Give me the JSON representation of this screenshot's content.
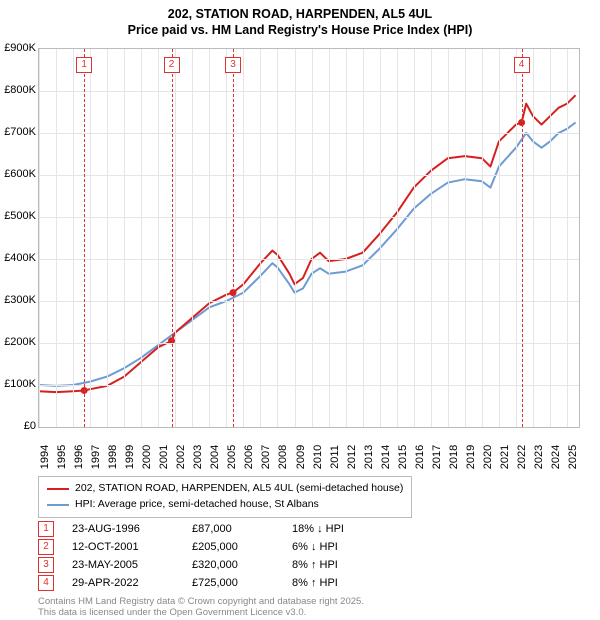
{
  "title": {
    "line1": "202, STATION ROAD, HARPENDEN, AL5 4UL",
    "line2": "Price paid vs. HM Land Registry's House Price Index (HPI)"
  },
  "chart": {
    "type": "line",
    "background_color": "#ffffff",
    "grid_color": "#e5e5e5",
    "marker_dash_color": "#e03030",
    "x": {
      "min": 1994,
      "max": 2025.7,
      "ticks": [
        1994,
        1995,
        1996,
        1997,
        1998,
        1999,
        2000,
        2001,
        2002,
        2003,
        2004,
        2005,
        2006,
        2007,
        2008,
        2009,
        2010,
        2011,
        2012,
        2013,
        2014,
        2015,
        2016,
        2017,
        2018,
        2019,
        2020,
        2021,
        2022,
        2023,
        2024,
        2025
      ]
    },
    "y": {
      "min": 0,
      "max": 900000,
      "ticks": [
        0,
        100000,
        200000,
        300000,
        400000,
        500000,
        600000,
        700000,
        800000,
        900000
      ],
      "labels": [
        "£0",
        "£100K",
        "£200K",
        "£300K",
        "£400K",
        "£500K",
        "£600K",
        "£700K",
        "£800K",
        "£900K"
      ]
    },
    "series": [
      {
        "name": "202, STATION ROAD, HARPENDEN, AL5 4UL (semi-detached house)",
        "color": "#d62020",
        "width": 2,
        "points": [
          [
            1994,
            85000
          ],
          [
            1995,
            83000
          ],
          [
            1996,
            85000
          ],
          [
            1996.65,
            87000
          ],
          [
            1997,
            90000
          ],
          [
            1998,
            98000
          ],
          [
            1999,
            120000
          ],
          [
            2000,
            155000
          ],
          [
            2001,
            190000
          ],
          [
            2001.78,
            205000
          ],
          [
            2002,
            225000
          ],
          [
            2003,
            260000
          ],
          [
            2004,
            295000
          ],
          [
            2005,
            315000
          ],
          [
            2005.39,
            320000
          ],
          [
            2006,
            340000
          ],
          [
            2007,
            390000
          ],
          [
            2007.7,
            420000
          ],
          [
            2008,
            410000
          ],
          [
            2008.7,
            365000
          ],
          [
            2009,
            340000
          ],
          [
            2009.5,
            355000
          ],
          [
            2010,
            400000
          ],
          [
            2010.5,
            415000
          ],
          [
            2011,
            395000
          ],
          [
            2012,
            400000
          ],
          [
            2013,
            415000
          ],
          [
            2014,
            460000
          ],
          [
            2015,
            510000
          ],
          [
            2016,
            570000
          ],
          [
            2017,
            610000
          ],
          [
            2018,
            640000
          ],
          [
            2019,
            645000
          ],
          [
            2020,
            640000
          ],
          [
            2020.5,
            620000
          ],
          [
            2021,
            680000
          ],
          [
            2022,
            720000
          ],
          [
            2022.33,
            725000
          ],
          [
            2022.6,
            770000
          ],
          [
            2023,
            740000
          ],
          [
            2023.5,
            720000
          ],
          [
            2024,
            740000
          ],
          [
            2024.5,
            760000
          ],
          [
            2025,
            770000
          ],
          [
            2025.5,
            790000
          ]
        ]
      },
      {
        "name": "HPI: Average price, semi-detached house, St Albans",
        "color": "#6e9bd4",
        "width": 2,
        "points": [
          [
            1994,
            100000
          ],
          [
            1995,
            98000
          ],
          [
            1996,
            100000
          ],
          [
            1997,
            108000
          ],
          [
            1998,
            120000
          ],
          [
            1999,
            140000
          ],
          [
            2000,
            165000
          ],
          [
            2001,
            195000
          ],
          [
            2002,
            225000
          ],
          [
            2003,
            255000
          ],
          [
            2004,
            285000
          ],
          [
            2005,
            300000
          ],
          [
            2006,
            320000
          ],
          [
            2007,
            360000
          ],
          [
            2007.7,
            390000
          ],
          [
            2008,
            380000
          ],
          [
            2008.7,
            340000
          ],
          [
            2009,
            320000
          ],
          [
            2009.5,
            330000
          ],
          [
            2010,
            365000
          ],
          [
            2010.5,
            378000
          ],
          [
            2011,
            365000
          ],
          [
            2012,
            370000
          ],
          [
            2013,
            385000
          ],
          [
            2014,
            425000
          ],
          [
            2015,
            470000
          ],
          [
            2016,
            520000
          ],
          [
            2017,
            555000
          ],
          [
            2018,
            582000
          ],
          [
            2019,
            590000
          ],
          [
            2020,
            585000
          ],
          [
            2020.5,
            570000
          ],
          [
            2021,
            620000
          ],
          [
            2022,
            665000
          ],
          [
            2022.6,
            700000
          ],
          [
            2023,
            680000
          ],
          [
            2023.5,
            665000
          ],
          [
            2024,
            680000
          ],
          [
            2024.5,
            700000
          ],
          [
            2025,
            710000
          ],
          [
            2025.5,
            725000
          ]
        ]
      }
    ],
    "sale_markers": [
      {
        "n": "1",
        "x": 1996.65,
        "y": 87000
      },
      {
        "n": "2",
        "x": 2001.78,
        "y": 205000
      },
      {
        "n": "3",
        "x": 2005.39,
        "y": 320000
      },
      {
        "n": "4",
        "x": 2022.33,
        "y": 725000
      }
    ]
  },
  "legend": [
    {
      "color": "#d62020",
      "label": "202, STATION ROAD, HARPENDEN, AL5 4UL (semi-detached house)"
    },
    {
      "color": "#6e9bd4",
      "label": "HPI: Average price, semi-detached house, St Albans"
    }
  ],
  "sales": [
    {
      "n": "1",
      "date": "23-AUG-1996",
      "price": "£87,000",
      "delta": "18% ↓ HPI"
    },
    {
      "n": "2",
      "date": "12-OCT-2001",
      "price": "£205,000",
      "delta": "6% ↓ HPI"
    },
    {
      "n": "3",
      "date": "23-MAY-2005",
      "price": "£320,000",
      "delta": "8% ↑ HPI"
    },
    {
      "n": "4",
      "date": "29-APR-2022",
      "price": "£725,000",
      "delta": "8% ↑ HPI"
    }
  ],
  "footnote": {
    "line1": "Contains HM Land Registry data © Crown copyright and database right 2025.",
    "line2": "This data is licensed under the Open Government Licence v3.0."
  }
}
